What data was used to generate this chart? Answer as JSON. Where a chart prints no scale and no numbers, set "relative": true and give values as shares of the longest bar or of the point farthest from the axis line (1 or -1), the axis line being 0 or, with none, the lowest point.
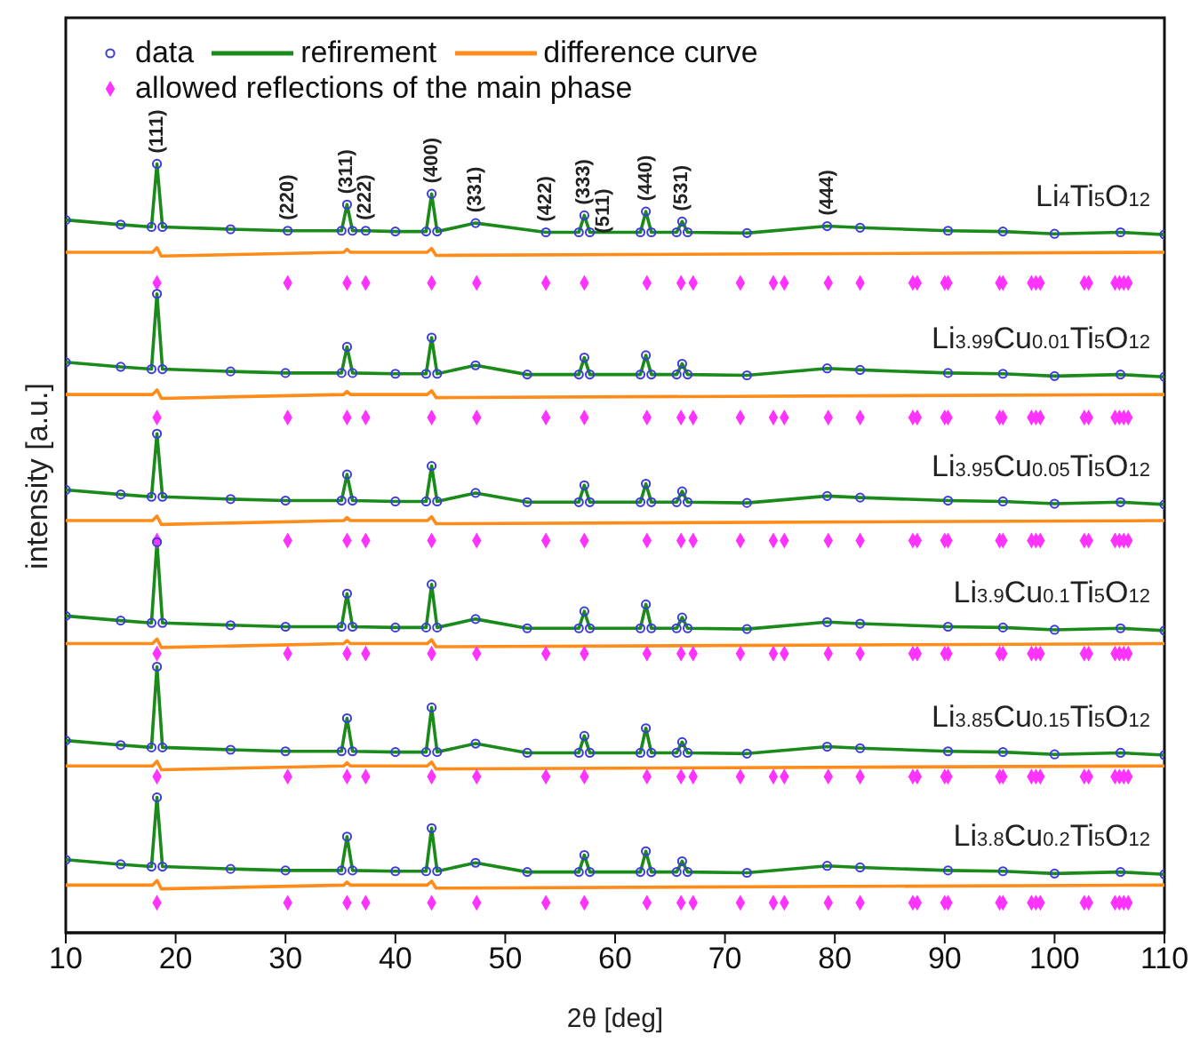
{
  "chart_data": {
    "type": "scatter",
    "relative": true,
    "xlabel": "2θ [deg]",
    "ylabel": "intensity [a.u.]",
    "xlim": [
      10,
      110
    ],
    "xticks": [
      10,
      20,
      30,
      40,
      50,
      60,
      70,
      80,
      90,
      100,
      110
    ],
    "legend": "top left",
    "x": [
      10,
      15,
      17.8,
      18.3,
      18.8,
      25,
      30,
      35.1,
      35.6,
      36.1,
      40,
      42.8,
      43.3,
      43.8,
      47.3,
      52,
      56.7,
      57.2,
      57.7,
      62.3,
      62.8,
      63.3,
      65.6,
      66.1,
      66.6,
      72,
      79.3,
      82.3,
      90.3,
      95.3,
      100,
      106,
      110
    ],
    "series": [
      {
        "name": "data",
        "color": "#3c3cdc",
        "marker": "circle",
        "x": [
          10,
          15,
          17.8,
          18.3,
          18.8,
          25,
          30.2,
          35.1,
          35.6,
          36.1,
          37.3,
          40,
          42.8,
          43.3,
          43.8,
          47.3,
          53.7,
          56.7,
          57.2,
          57.7,
          62.3,
          62.8,
          63.3,
          65.6,
          66.1,
          66.6,
          72,
          79.3,
          82.3,
          90.3,
          95.3,
          100,
          106,
          110
        ],
        "values": [
          0.927,
          0.921,
          0.918,
          1,
          0.918,
          0.915,
          0.913,
          0.913,
          0.947,
          0.913,
          0.913,
          0.912,
          0.912,
          0.961,
          0.912,
          0.923,
          0.911,
          0.911,
          0.933,
          0.911,
          0.911,
          0.938,
          0.911,
          0.911,
          0.925,
          0.911,
          0.91,
          0.919,
          0.917,
          0.913,
          0.912,
          0.909,
          0.911,
          0.908
        ]
      },
      {
        "type": "line",
        "name": "refirement",
        "color": "#1a8a1a",
        "x": [
          10,
          15,
          17.8,
          18.3,
          18.8,
          25,
          30.2,
          35.1,
          35.6,
          36.1,
          37.3,
          40,
          42.8,
          43.3,
          43.8,
          47.3,
          53.7,
          56.7,
          57.2,
          57.7,
          62.3,
          62.8,
          63.3,
          65.6,
          66.1,
          66.6,
          72,
          79.3,
          82.3,
          90.3,
          95.3,
          100,
          106,
          110
        ],
        "values": [
          0.927,
          0.921,
          0.918,
          1,
          0.918,
          0.915,
          0.913,
          0.913,
          0.947,
          0.913,
          0.913,
          0.912,
          0.912,
          0.961,
          0.912,
          0.923,
          0.911,
          0.911,
          0.933,
          0.911,
          0.911,
          0.938,
          0.911,
          0.911,
          0.925,
          0.911,
          0.91,
          0.919,
          0.917,
          0.913,
          0.912,
          0.909,
          0.911,
          0.908
        ]
      },
      {
        "type": "line",
        "name": "difference curve",
        "color": "#ff8c1a",
        "x": [
          10,
          17.9,
          18.3,
          18.7,
          35.3,
          35.6,
          35.9,
          42.9,
          43.3,
          43.7,
          110
        ],
        "values": [
          0.885,
          0.885,
          0.891,
          0.88,
          0.885,
          0.889,
          0.885,
          0.885,
          0.89,
          0.881,
          0.885
        ]
      },
      {
        "name": "allowed reflections of the main phase",
        "color": "#ff33ff",
        "marker": "diamond",
        "x": [
          18.3,
          30.2,
          35.6,
          37.3,
          43.3,
          47.4,
          53.7,
          57.2,
          62.9,
          66.0,
          67.1,
          71.4,
          74.4,
          75.4,
          79.4,
          82.3,
          87.1,
          87.5,
          90.0,
          90.3,
          95.0,
          95.3,
          97.9,
          98.3,
          98.7,
          102.7,
          103.1,
          105.5,
          105.9,
          106.3,
          106.7
        ],
        "values": [
          0.845,
          0.845,
          0.845,
          0.845,
          0.845,
          0.845,
          0.845,
          0.845,
          0.845,
          0.845,
          0.845,
          0.845,
          0.845,
          0.845,
          0.845,
          0.845,
          0.845,
          0.845,
          0.845,
          0.845,
          0.845,
          0.845,
          0.845,
          0.845,
          0.845,
          0.845,
          0.845,
          0.845,
          0.845,
          0.845,
          0.845
        ]
      },
      {
        "color": "#3c3cdc",
        "marker": "circle",
        "values": [
          0.742,
          0.736,
          0.733,
          0.831,
          0.733,
          0.73,
          0.728,
          0.728,
          0.762,
          0.728,
          0.727,
          0.727,
          0.774,
          0.727,
          0.738,
          0.726,
          0.726,
          0.748,
          0.726,
          0.726,
          0.751,
          0.726,
          0.726,
          0.74,
          0.726,
          0.725,
          0.734,
          0.732,
          0.728,
          0.727,
          0.724,
          0.726,
          0.723
        ]
      },
      {
        "type": "line",
        "color": "#1a8a1a",
        "values": [
          0.742,
          0.736,
          0.733,
          0.831,
          0.733,
          0.73,
          0.728,
          0.728,
          0.762,
          0.728,
          0.727,
          0.727,
          0.774,
          0.727,
          0.738,
          0.726,
          0.726,
          0.748,
          0.726,
          0.726,
          0.751,
          0.726,
          0.726,
          0.74,
          0.726,
          0.725,
          0.734,
          0.732,
          0.728,
          0.727,
          0.724,
          0.726,
          0.723
        ]
      },
      {
        "type": "line",
        "color": "#ff8c1a",
        "x": [
          10,
          17.9,
          18.3,
          18.7,
          35.3,
          35.6,
          35.9,
          42.9,
          43.3,
          43.7,
          110
        ],
        "values": [
          0.7,
          0.7,
          0.706,
          0.695,
          0.7,
          0.704,
          0.7,
          0.7,
          0.705,
          0.696,
          0.7
        ]
      },
      {
        "color": "#ff33ff",
        "marker": "diamond",
        "x": [
          18.3,
          30.2,
          35.6,
          37.3,
          43.3,
          47.4,
          53.7,
          57.2,
          62.9,
          66.0,
          67.1,
          71.4,
          74.4,
          75.4,
          79.4,
          82.3,
          87.1,
          87.5,
          90.0,
          90.3,
          95.0,
          95.3,
          97.9,
          98.3,
          98.7,
          102.7,
          103.1,
          105.5,
          105.9,
          106.3,
          106.7
        ],
        "values": [
          0.67,
          0.67,
          0.67,
          0.67,
          0.67,
          0.67,
          0.67,
          0.67,
          0.67,
          0.67,
          0.67,
          0.67,
          0.67,
          0.67,
          0.67,
          0.67,
          0.67,
          0.67,
          0.67,
          0.67,
          0.67,
          0.67,
          0.67,
          0.67,
          0.67,
          0.67,
          0.67,
          0.67,
          0.67,
          0.67,
          0.67
        ]
      },
      {
        "color": "#3c3cdc",
        "marker": "circle",
        "values": [
          0.576,
          0.57,
          0.567,
          0.649,
          0.567,
          0.564,
          0.562,
          0.562,
          0.596,
          0.562,
          0.561,
          0.561,
          0.607,
          0.561,
          0.572,
          0.56,
          0.56,
          0.582,
          0.56,
          0.56,
          0.584,
          0.56,
          0.56,
          0.574,
          0.56,
          0.559,
          0.568,
          0.566,
          0.562,
          0.561,
          0.558,
          0.56,
          0.557
        ]
      },
      {
        "type": "line",
        "color": "#1a8a1a",
        "values": [
          0.576,
          0.57,
          0.567,
          0.649,
          0.567,
          0.564,
          0.562,
          0.562,
          0.596,
          0.562,
          0.561,
          0.561,
          0.607,
          0.561,
          0.572,
          0.56,
          0.56,
          0.582,
          0.56,
          0.56,
          0.584,
          0.56,
          0.56,
          0.574,
          0.56,
          0.559,
          0.568,
          0.566,
          0.562,
          0.561,
          0.558,
          0.56,
          0.557
        ]
      },
      {
        "type": "line",
        "color": "#ff8c1a",
        "x": [
          10,
          17.9,
          18.3,
          18.7,
          35.3,
          35.6,
          35.9,
          42.9,
          43.3,
          43.7,
          110
        ],
        "values": [
          0.536,
          0.536,
          0.542,
          0.531,
          0.536,
          0.54,
          0.536,
          0.536,
          0.541,
          0.532,
          0.536
        ]
      },
      {
        "color": "#ff33ff",
        "marker": "diamond",
        "x": [
          18.3,
          30.2,
          35.6,
          37.3,
          43.3,
          47.4,
          53.7,
          57.2,
          62.9,
          66.0,
          67.1,
          71.4,
          74.4,
          75.4,
          79.4,
          82.3,
          87.1,
          87.5,
          90.0,
          90.3,
          95.0,
          95.3,
          97.9,
          98.3,
          98.7,
          102.7,
          103.1,
          105.5,
          105.9,
          106.3,
          106.7
        ],
        "values": [
          0.51,
          0.51,
          0.51,
          0.51,
          0.51,
          0.51,
          0.51,
          0.51,
          0.51,
          0.51,
          0.51,
          0.51,
          0.51,
          0.51,
          0.51,
          0.51,
          0.51,
          0.51,
          0.51,
          0.51,
          0.51,
          0.51,
          0.51,
          0.51,
          0.51,
          0.51,
          0.51,
          0.51,
          0.51,
          0.51,
          0.51
        ]
      },
      {
        "color": "#3c3cdc",
        "marker": "circle",
        "values": [
          0.412,
          0.406,
          0.403,
          0.508,
          0.403,
          0.4,
          0.398,
          0.398,
          0.441,
          0.398,
          0.397,
          0.397,
          0.453,
          0.397,
          0.408,
          0.396,
          0.396,
          0.418,
          0.396,
          0.396,
          0.427,
          0.396,
          0.396,
          0.41,
          0.396,
          0.395,
          0.404,
          0.402,
          0.398,
          0.397,
          0.394,
          0.396,
          0.393
        ]
      },
      {
        "type": "line",
        "color": "#1a8a1a",
        "values": [
          0.412,
          0.406,
          0.403,
          0.508,
          0.403,
          0.4,
          0.398,
          0.398,
          0.441,
          0.398,
          0.397,
          0.397,
          0.453,
          0.397,
          0.408,
          0.396,
          0.396,
          0.418,
          0.396,
          0.396,
          0.427,
          0.396,
          0.396,
          0.41,
          0.396,
          0.395,
          0.404,
          0.402,
          0.398,
          0.397,
          0.394,
          0.396,
          0.393
        ]
      },
      {
        "type": "line",
        "color": "#ff8c1a",
        "x": [
          10,
          17.9,
          18.3,
          18.7,
          35.3,
          35.6,
          35.9,
          42.9,
          43.3,
          43.7,
          110
        ],
        "values": [
          0.376,
          0.376,
          0.382,
          0.371,
          0.376,
          0.38,
          0.376,
          0.376,
          0.381,
          0.372,
          0.376
        ]
      },
      {
        "color": "#ff33ff",
        "marker": "diamond",
        "x": [
          18.3,
          30.2,
          35.6,
          37.3,
          43.3,
          47.4,
          53.7,
          57.2,
          62.9,
          66.0,
          67.1,
          71.4,
          74.4,
          75.4,
          79.4,
          82.3,
          87.1,
          87.5,
          90.0,
          90.3,
          95.0,
          95.3,
          97.9,
          98.3,
          98.7,
          102.7,
          103.1,
          105.5,
          105.9,
          106.3,
          106.7
        ],
        "values": [
          0.363,
          0.363,
          0.363,
          0.363,
          0.363,
          0.363,
          0.363,
          0.363,
          0.363,
          0.363,
          0.363,
          0.363,
          0.363,
          0.363,
          0.363,
          0.363,
          0.363,
          0.363,
          0.363,
          0.363,
          0.363,
          0.363,
          0.363,
          0.363,
          0.363,
          0.363,
          0.363,
          0.363,
          0.363,
          0.363,
          0.363
        ]
      },
      {
        "color": "#3c3cdc",
        "marker": "circle",
        "values": [
          0.25,
          0.244,
          0.241,
          0.346,
          0.241,
          0.238,
          0.236,
          0.236,
          0.279,
          0.236,
          0.235,
          0.235,
          0.293,
          0.235,
          0.246,
          0.234,
          0.234,
          0.256,
          0.234,
          0.234,
          0.266,
          0.234,
          0.234,
          0.248,
          0.234,
          0.233,
          0.242,
          0.24,
          0.236,
          0.235,
          0.232,
          0.234,
          0.231
        ]
      },
      {
        "type": "line",
        "color": "#1a8a1a",
        "values": [
          0.25,
          0.244,
          0.241,
          0.346,
          0.241,
          0.238,
          0.236,
          0.236,
          0.279,
          0.236,
          0.235,
          0.235,
          0.293,
          0.235,
          0.246,
          0.234,
          0.234,
          0.256,
          0.234,
          0.234,
          0.266,
          0.234,
          0.234,
          0.248,
          0.234,
          0.233,
          0.242,
          0.24,
          0.236,
          0.235,
          0.232,
          0.234,
          0.231
        ]
      },
      {
        "type": "line",
        "color": "#ff8c1a",
        "x": [
          10,
          17.9,
          18.3,
          18.7,
          35.3,
          35.6,
          35.9,
          42.9,
          43.3,
          43.7,
          110
        ],
        "values": [
          0.217,
          0.217,
          0.223,
          0.212,
          0.217,
          0.221,
          0.217,
          0.217,
          0.222,
          0.213,
          0.217
        ]
      },
      {
        "color": "#ff33ff",
        "marker": "diamond",
        "x": [
          18.3,
          30.2,
          35.6,
          37.3,
          43.3,
          47.4,
          53.7,
          57.2,
          62.9,
          66.0,
          67.1,
          71.4,
          74.4,
          75.4,
          79.4,
          82.3,
          87.1,
          87.5,
          90.0,
          90.3,
          95.0,
          95.3,
          97.9,
          98.3,
          98.7,
          102.7,
          103.1,
          105.5,
          105.9,
          106.3,
          106.7
        ],
        "values": [
          0.203,
          0.203,
          0.203,
          0.203,
          0.203,
          0.203,
          0.203,
          0.203,
          0.203,
          0.203,
          0.203,
          0.203,
          0.203,
          0.203,
          0.203,
          0.203,
          0.203,
          0.203,
          0.203,
          0.203,
          0.203,
          0.203,
          0.203,
          0.203,
          0.203,
          0.203,
          0.203,
          0.203,
          0.203,
          0.203,
          0.203
        ]
      },
      {
        "color": "#3c3cdc",
        "marker": "circle",
        "values": [
          0.095,
          0.089,
          0.086,
          0.176,
          0.086,
          0.083,
          0.081,
          0.081,
          0.125,
          0.081,
          0.08,
          0.08,
          0.136,
          0.08,
          0.091,
          0.079,
          0.079,
          0.101,
          0.079,
          0.079,
          0.106,
          0.079,
          0.079,
          0.093,
          0.079,
          0.078,
          0.087,
          0.085,
          0.081,
          0.08,
          0.077,
          0.079,
          0.076
        ]
      },
      {
        "type": "line",
        "color": "#1a8a1a",
        "values": [
          0.095,
          0.089,
          0.086,
          0.176,
          0.086,
          0.083,
          0.081,
          0.081,
          0.125,
          0.081,
          0.08,
          0.08,
          0.136,
          0.08,
          0.091,
          0.079,
          0.079,
          0.101,
          0.079,
          0.079,
          0.106,
          0.079,
          0.079,
          0.093,
          0.079,
          0.078,
          0.087,
          0.085,
          0.081,
          0.08,
          0.077,
          0.079,
          0.076
        ]
      },
      {
        "type": "line",
        "color": "#ff8c1a",
        "x": [
          10,
          17.9,
          18.3,
          18.7,
          35.3,
          35.6,
          35.9,
          42.9,
          43.3,
          43.7,
          110
        ],
        "values": [
          0.062,
          0.062,
          0.068,
          0.057,
          0.062,
          0.066,
          0.062,
          0.062,
          0.067,
          0.058,
          0.062
        ]
      },
      {
        "color": "#ff33ff",
        "marker": "diamond",
        "x": [
          18.3,
          30.2,
          35.6,
          37.3,
          43.3,
          47.4,
          53.7,
          57.2,
          62.9,
          66.0,
          67.1,
          71.4,
          74.4,
          75.4,
          79.4,
          82.3,
          87.1,
          87.5,
          90.0,
          90.3,
          95.0,
          95.3,
          97.9,
          98.3,
          98.7,
          102.7,
          103.1,
          105.5,
          105.9,
          106.3,
          106.7
        ],
        "values": [
          0.039,
          0.039,
          0.039,
          0.039,
          0.039,
          0.039,
          0.039,
          0.039,
          0.039,
          0.039,
          0.039,
          0.039,
          0.039,
          0.039,
          0.039,
          0.039,
          0.039,
          0.039,
          0.039,
          0.039,
          0.039,
          0.039,
          0.039,
          0.039,
          0.039,
          0.039,
          0.039,
          0.039,
          0.039,
          0.039,
          0.039
        ]
      }
    ],
    "annotations": [
      {
        "text": "(111)",
        "x": 18.3,
        "y": 1
      },
      {
        "text": "(220)",
        "x": 30.2,
        "y": 0.913
      },
      {
        "text": "(311)",
        "x": 35.6,
        "y": 0.947
      },
      {
        "text": "(222)",
        "x": 37.3,
        "y": 0.913
      },
      {
        "text": "(400)",
        "x": 43.3,
        "y": 0.961
      },
      {
        "text": "(331)",
        "x": 47.3,
        "y": 0.923
      },
      {
        "text": "(422)",
        "x": 53.7,
        "y": 0.911
      },
      {
        "text": "(333)",
        "x": 57.2,
        "y": 0.933
      },
      {
        "text": "(511)",
        "x": 57.2,
        "y": 0.933
      },
      {
        "text": "(440)",
        "x": 62.8,
        "y": 0.938
      },
      {
        "text": "(531)",
        "x": 66.1,
        "y": 0.925
      },
      {
        "text": "(444)",
        "x": 79.3,
        "y": 0.919
      },
      "Li$_{4}$Ti$_{5}$O$_{12}$",
      "Li$_{3.99}$Cu$_{0.01}$Ti$_{5}$O$_{12}$",
      "Li$_{3.95}$Cu$_{0.05}$Ti$_{5}$O$_{12}$",
      "Li$_{3.9}$Cu$_{0.1}$Ti$_{5}$O$_{12}$",
      "Li$_{3.85}$Cu$_{0.15}$Ti$_{5}$O$_{12}$",
      "Li$_{3.8}$Cu$_{0.2}$Ti$_{5}$O$_{12}$"
    ]
  }
}
